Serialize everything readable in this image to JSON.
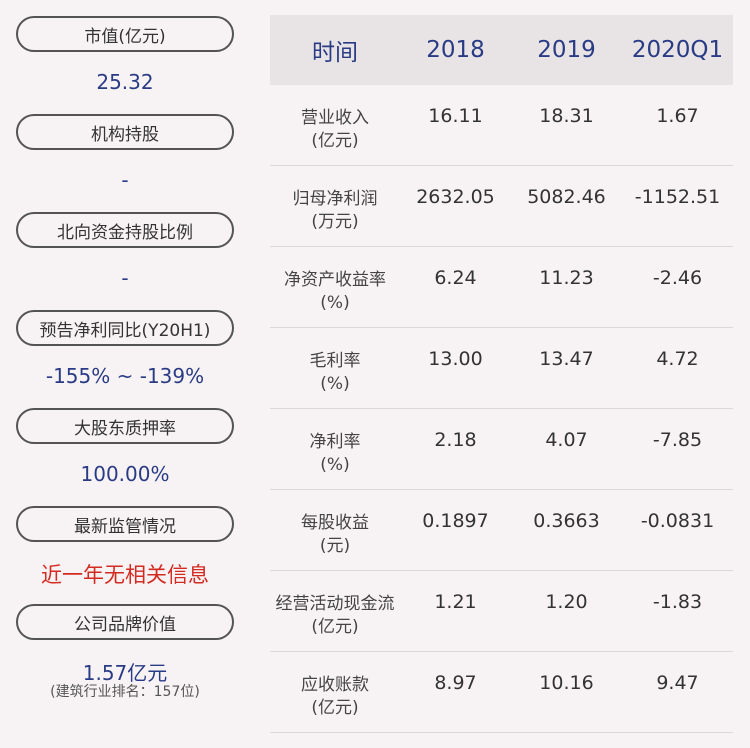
{
  "left": {
    "items": [
      {
        "label": "市值(亿元)",
        "value": "25.32"
      },
      {
        "label": "机构持股",
        "value": "-"
      },
      {
        "label": "北向资金持股比例",
        "value": "-"
      },
      {
        "label": "预告净利同比(Y20H1)",
        "value": "-155% ~ -139%"
      },
      {
        "label": "大股东质押率",
        "value": "100.00%"
      },
      {
        "label": "最新监管情况",
        "value": "近一年无相关信息"
      },
      {
        "label": "公司品牌价值",
        "value": "1.57亿元",
        "note": "(建筑行业排名：157位)"
      }
    ]
  },
  "table": {
    "headers": [
      "时间",
      "2018",
      "2019",
      "2020Q1"
    ],
    "rows": [
      {
        "name": "营业收入",
        "unit": "(亿元)",
        "values": [
          "16.11",
          "18.31",
          "1.67"
        ]
      },
      {
        "name": "归母净利润",
        "unit": "(万元)",
        "values": [
          "2632.05",
          "5082.46",
          "-1152.51"
        ]
      },
      {
        "name": "净资产收益率",
        "unit": "(%)",
        "values": [
          "6.24",
          "11.23",
          "-2.46"
        ]
      },
      {
        "name": "毛利率",
        "unit": "(%)",
        "values": [
          "13.00",
          "13.47",
          "4.72"
        ]
      },
      {
        "name": "净利率",
        "unit": "(%)",
        "values": [
          "2.18",
          "4.07",
          "-7.85"
        ]
      },
      {
        "name": "每股收益",
        "unit": "(元)",
        "values": [
          "0.1897",
          "0.3663",
          "-0.0831"
        ]
      },
      {
        "name": "经营活动现金流",
        "unit": "(亿元)",
        "values": [
          "1.21",
          "1.20",
          "-1.83"
        ]
      },
      {
        "name": "应收账款",
        "unit": "(亿元)",
        "values": [
          "8.97",
          "10.16",
          "9.47"
        ]
      }
    ]
  },
  "colors": {
    "value_blue": "#2a3b85",
    "alert_red": "#d42b21",
    "header_bg": "#e8e4e5"
  }
}
